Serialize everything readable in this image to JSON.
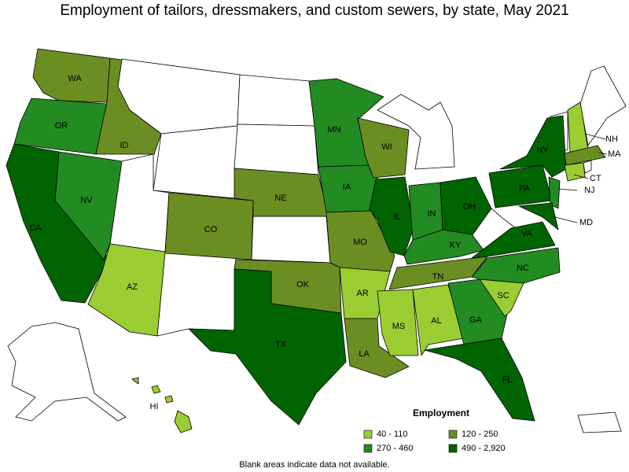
{
  "title": "Employment of tailors, dressmakers, and custom sewers, by state, May 2021",
  "legend": {
    "title": "Employment",
    "items": [
      {
        "label": "40 - 110",
        "color": "#9acd32"
      },
      {
        "label": "120 - 250",
        "color": "#6b8e23"
      },
      {
        "label": "270 - 460",
        "color": "#228b22"
      },
      {
        "label": "490 - 2,920",
        "color": "#006400"
      }
    ]
  },
  "states": [
    {
      "label": "WA",
      "bin": 1
    },
    {
      "label": "OR",
      "bin": 2
    },
    {
      "label": "CA",
      "bin": 3
    },
    {
      "label": "NV",
      "bin": 2
    },
    {
      "label": "ID",
      "bin": 1
    },
    {
      "label": "AZ",
      "bin": 0
    },
    {
      "label": "CO",
      "bin": 1
    },
    {
      "label": "NE",
      "bin": 1
    },
    {
      "label": "OK",
      "bin": 1
    },
    {
      "label": "TX",
      "bin": 3
    },
    {
      "label": "MN",
      "bin": 2
    },
    {
      "label": "IA",
      "bin": 2
    },
    {
      "label": "MO",
      "bin": 1
    },
    {
      "label": "AR",
      "bin": 0
    },
    {
      "label": "LA",
      "bin": 1
    },
    {
      "label": "WI",
      "bin": 1
    },
    {
      "label": "IL",
      "bin": 3
    },
    {
      "label": "IN",
      "bin": 2
    },
    {
      "label": "OH",
      "bin": 3
    },
    {
      "label": "KY",
      "bin": 2
    },
    {
      "label": "TN",
      "bin": 1
    },
    {
      "label": "MS",
      "bin": 0
    },
    {
      "label": "AL",
      "bin": 0
    },
    {
      "label": "GA",
      "bin": 2
    },
    {
      "label": "FL",
      "bin": 3
    },
    {
      "label": "SC",
      "bin": 0
    },
    {
      "label": "NC",
      "bin": 2
    },
    {
      "label": "VA",
      "bin": 3
    },
    {
      "label": "PA",
      "bin": 3
    },
    {
      "label": "NY",
      "bin": 3
    },
    {
      "label": "NJ",
      "bin": 2
    },
    {
      "label": "MD",
      "bin": 3
    },
    {
      "label": "NH",
      "bin": 0
    },
    {
      "label": "MA",
      "bin": 1
    },
    {
      "label": "CT",
      "bin": 0
    },
    {
      "label": "HI",
      "bin": 0
    }
  ],
  "footnote": "Blank areas indicate data not available."
}
